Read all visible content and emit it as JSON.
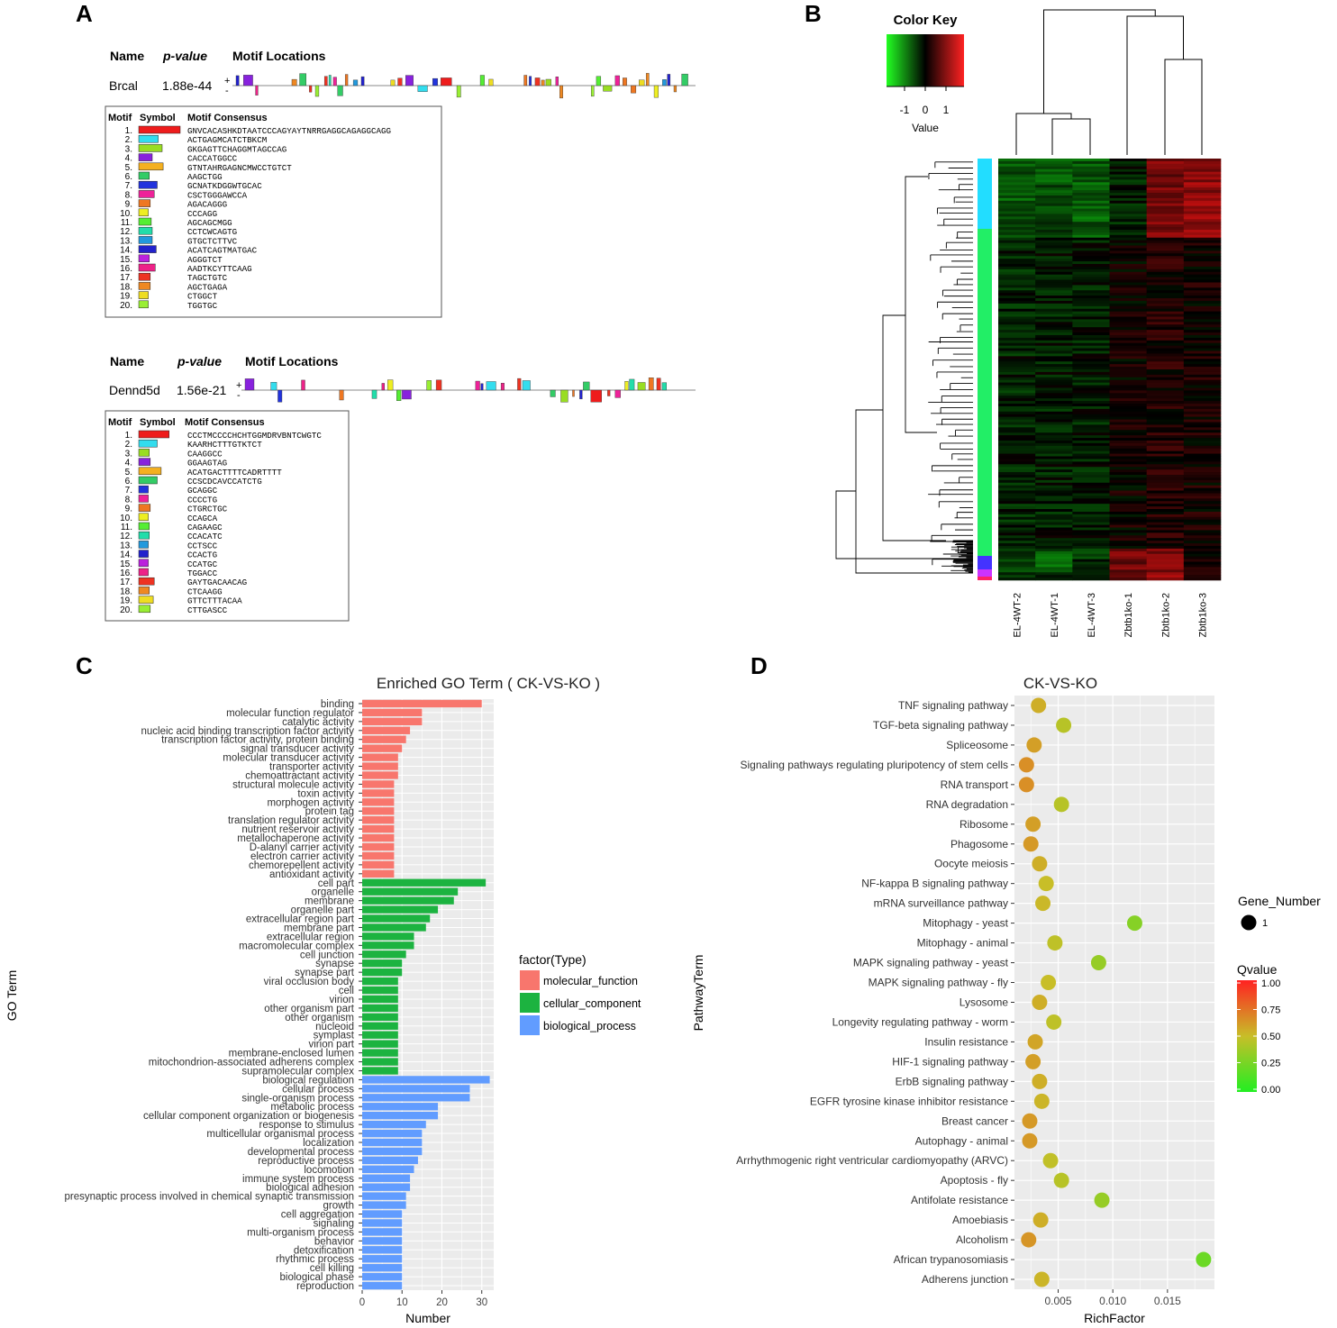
{
  "panels": {
    "a": "A",
    "b": "B",
    "c": "C",
    "d": "D"
  },
  "motif": {
    "hdr_name": "Name",
    "hdr_pvalue": "p-value",
    "hdr_locations": "Motif Locations",
    "tbl_motif": "Motif",
    "tbl_symbol": "Symbol",
    "tbl_consensus": "Motif Consensus",
    "strand_plus": "+",
    "strand_minus": "-",
    "genes": [
      {
        "name": "Brcal",
        "pvalue": "1.88e-44",
        "motifs": [
          {
            "n": "1.",
            "c": "GNVCACASHKDTAATCCCAGYAYTNRRGAGGCAGAGGCAGG",
            "color": "#ee1c1c"
          },
          {
            "n": "2.",
            "c": "ACTGAGMCATCTBKCM",
            "color": "#33ddee"
          },
          {
            "n": "3.",
            "c": "GKGAGTTCHAGGMTAGCCAG",
            "color": "#99dd22"
          },
          {
            "n": "4.",
            "c": "CACCATGGCC",
            "color": "#8822dd"
          },
          {
            "n": "5.",
            "c": "GTNTAHRGAGNCMWCCTGTCT",
            "color": "#f4b020"
          },
          {
            "n": "6.",
            "c": "AAGCTGG",
            "color": "#33cc66"
          },
          {
            "n": "7.",
            "c": "GCNATKDGGWTGCAC",
            "color": "#2233dd"
          },
          {
            "n": "8.",
            "c": "CSCTGGGAWCCA",
            "color": "#ee2299"
          },
          {
            "n": "9.",
            "c": "AGACAGGG",
            "color": "#ee7722"
          },
          {
            "n": "10.",
            "c": "CCCAGG",
            "color": "#eeee22"
          },
          {
            "n": "11.",
            "c": "AGCAGCMGG",
            "color": "#55ee33"
          },
          {
            "n": "12.",
            "c": "CCTCWCAGTG",
            "color": "#22ddaa"
          },
          {
            "n": "13.",
            "c": "GTGCTCTTVC",
            "color": "#2299dd"
          },
          {
            "n": "14.",
            "c": "ACATCAGTMATGAC",
            "color": "#2222cc"
          },
          {
            "n": "15.",
            "c": "AGGGTCT",
            "color": "#bb22dd"
          },
          {
            "n": "16.",
            "c": "AADTKCYTTCAAG",
            "color": "#ee2288"
          },
          {
            "n": "17.",
            "c": "TAGCTGTC",
            "color": "#ee3322"
          },
          {
            "n": "18.",
            "c": "AGCTGAGA",
            "color": "#ee8822"
          },
          {
            "n": "19.",
            "c": "CTGGCT",
            "color": "#eedd22"
          },
          {
            "n": "20.",
            "c": "TGGTGC",
            "color": "#99ee33"
          }
        ]
      },
      {
        "name": "Dennd5d",
        "pvalue": "1.56e-21",
        "motifs": [
          {
            "n": "1.",
            "c": "CCCTMCCCCHCHTGGMDRVBNTCWGTC",
            "color": "#ee1c1c"
          },
          {
            "n": "2.",
            "c": "KAARHCTTTGTKTCT",
            "color": "#33ddee"
          },
          {
            "n": "3.",
            "c": "CAAGGCC",
            "color": "#99dd22"
          },
          {
            "n": "4.",
            "c": "GGAAGTAG",
            "color": "#8822dd"
          },
          {
            "n": "5.",
            "c": "ACATGACTTTTCADRTTTT",
            "color": "#f4b020"
          },
          {
            "n": "6.",
            "c": "CCSCDCAVCCATCTG",
            "color": "#33cc66"
          },
          {
            "n": "7.",
            "c": "GCAGGC",
            "color": "#2233dd"
          },
          {
            "n": "8.",
            "c": "CCCCTG",
            "color": "#ee2299"
          },
          {
            "n": "9.",
            "c": "CTGRCTGC",
            "color": "#ee7722"
          },
          {
            "n": "10.",
            "c": "CCAGCA",
            "color": "#eeee22"
          },
          {
            "n": "11.",
            "c": "CAGAAGC",
            "color": "#55ee33"
          },
          {
            "n": "12.",
            "c": "CCACATC",
            "color": "#22ddaa"
          },
          {
            "n": "13.",
            "c": "CCTSCC",
            "color": "#2299dd"
          },
          {
            "n": "14.",
            "c": "CCACTG",
            "color": "#2222cc"
          },
          {
            "n": "15.",
            "c": "CCATGC",
            "color": "#bb22dd"
          },
          {
            "n": "16.",
            "c": "TGGACC",
            "color": "#ee2288"
          },
          {
            "n": "17.",
            "c": "GAYTGACAACAG",
            "color": "#ee3322"
          },
          {
            "n": "18.",
            "c": "CTCAAGG",
            "color": "#ee8822"
          },
          {
            "n": "19.",
            "c": "GTTCTTTACAA",
            "color": "#eedd22"
          },
          {
            "n": "20.",
            "c": "CTTGASCC",
            "color": "#99ee33"
          }
        ]
      }
    ]
  },
  "heatmap": {
    "color_key_title": "Color Key",
    "color_key_xlabel": "Value",
    "color_key_ticks": [
      "-1",
      "0",
      "1"
    ],
    "samples": [
      "EL-4WT-2",
      "EL-4WT-1",
      "EL-4WT-3",
      "Zbtb1ko-1",
      "Zbtb1ko-2",
      "Zbtb1ko-3"
    ]
  },
  "chart_data": [
    {
      "type": "bar",
      "title": "Enriched GO Term ( CK-VS-KO )",
      "xlabel": "Number",
      "ylabel": "GO Term",
      "xlim": [
        0,
        33
      ],
      "xticks": [
        "0",
        "10",
        "20",
        "30"
      ],
      "legend_title": "factor(Type)",
      "legend_placement": "right",
      "series": [
        {
          "name": "molecular_function",
          "color": "#f8766d"
        },
        {
          "name": "cellular_component",
          "color": "#1cb340"
        },
        {
          "name": "biological_process",
          "color": "#619cff"
        }
      ],
      "categories": [
        "binding",
        "molecular function regulator",
        "catalytic activity",
        "nucleic acid binding transcription factor activity",
        "transcription factor activity, protein binding",
        "signal transducer activity",
        "molecular transducer activity",
        "transporter activity",
        "chemoattractant activity",
        "structural molecule activity",
        "toxin activity",
        "morphogen activity",
        "protein tag",
        "translation regulator activity",
        "nutrient reservoir activity",
        "metallochaperone activity",
        "D-alanyl carrier activity",
        "electron carrier activity",
        "chemorepellent activity",
        "antioxidant activity",
        "cell part",
        "organelle",
        "membrane",
        "organelle part",
        "extracellular region part",
        "membrane part",
        "extracellular region",
        "macromolecular complex",
        "cell junction",
        "synapse",
        "synapse part",
        "viral occlusion body",
        "cell",
        "virion",
        "other organism part",
        "other organism",
        "nucleoid",
        "symplast",
        "virion part",
        "membrane-enclosed lumen",
        "mitochondrion-associated adherens complex",
        "supramolecular complex",
        "biological regulation",
        "cellular process",
        "single-organism process",
        "metabolic process",
        "cellular component organization or biogenesis",
        "response to stimulus",
        "multicellular organismal process",
        "localization",
        "developmental process",
        "reproductive process",
        "locomotion",
        "immune system process",
        "biological adhesion",
        "presynaptic process involved in chemical synaptic transmission",
        "growth",
        "cell aggregation",
        "signaling",
        "multi-organism process",
        "behavior",
        "detoxification",
        "rhythmic process",
        "cell killing",
        "biological phase",
        "reproduction"
      ],
      "values": [
        30,
        15,
        15,
        12,
        11,
        10,
        9,
        9,
        9,
        8,
        8,
        8,
        8,
        8,
        8,
        8,
        8,
        8,
        8,
        8,
        31,
        24,
        23,
        19,
        17,
        16,
        13,
        13,
        11,
        10,
        10,
        9,
        9,
        9,
        9,
        9,
        9,
        9,
        9,
        9,
        9,
        9,
        32,
        27,
        27,
        19,
        19,
        16,
        15,
        15,
        15,
        14,
        13,
        12,
        12,
        11,
        11,
        10,
        10,
        10,
        10,
        10,
        10,
        10,
        10,
        10
      ],
      "group_sizes": [
        20,
        22,
        24
      ]
    },
    {
      "type": "scatter",
      "title": "CK-VS-KO",
      "xlabel": "RichFactor",
      "ylabel": "PathwayTerm",
      "xlim": [
        0.001,
        0.0193
      ],
      "xticks": [
        0.005,
        0.01,
        0.015
      ],
      "xtick_labels": [
        "0.005",
        "0.010",
        "0.015"
      ],
      "size_legend_title": "Gene_Number",
      "size_legend_value": "1",
      "color_legend_title": "Qvalue",
      "color_legend_ticks": [
        "1.00",
        "0.75",
        "0.50",
        "0.25",
        "0.00"
      ],
      "color_low": "#22ee22",
      "color_high": "#ff2222",
      "categories": [
        "TNF signaling pathway",
        "TGF-beta signaling pathway",
        "Spliceosome",
        "Signaling pathways regulating pluripotency of stem cells",
        "RNA transport",
        "RNA degradation",
        "Ribosome",
        "Phagosome",
        "Oocyte meiosis",
        "NF-kappa B signaling pathway",
        "mRNA surveillance pathway",
        "Mitophagy - yeast",
        "Mitophagy - animal",
        "MAPK signaling pathway - yeast",
        "MAPK signaling pathway - fly",
        "Lysosome",
        "Longevity regulating pathway - worm",
        "Insulin resistance",
        "HIF-1 signaling pathway",
        "ErbB signaling pathway",
        "EGFR tyrosine kinase inhibitor resistance",
        "Breast cancer",
        "Autophagy - animal",
        "Arrhythmogenic right ventricular cardiomyopathy (ARVC)",
        "Apoptosis - fly",
        "Antifolate resistance",
        "Amoebiasis",
        "Alcoholism",
        "African trypanosomiasis",
        "Adherens junction"
      ],
      "x": [
        0.0032,
        0.0055,
        0.0028,
        0.0021,
        0.0021,
        0.0053,
        0.0027,
        0.0025,
        0.0033,
        0.0039,
        0.0036,
        0.012,
        0.0047,
        0.0087,
        0.0041,
        0.0033,
        0.0046,
        0.0029,
        0.0027,
        0.0033,
        0.0035,
        0.0024,
        0.0024,
        0.0043,
        0.0053,
        0.009,
        0.0034,
        0.0023,
        0.0183,
        0.0035
      ],
      "qvalue": [
        0.55,
        0.45,
        0.6,
        0.65,
        0.65,
        0.45,
        0.6,
        0.62,
        0.55,
        0.5,
        0.52,
        0.3,
        0.47,
        0.35,
        0.5,
        0.55,
        0.47,
        0.58,
        0.6,
        0.55,
        0.53,
        0.62,
        0.62,
        0.48,
        0.45,
        0.35,
        0.55,
        0.63,
        0.22,
        0.53
      ]
    }
  ]
}
